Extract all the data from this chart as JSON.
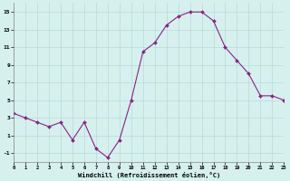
{
  "x": [
    0,
    1,
    2,
    3,
    4,
    5,
    6,
    7,
    8,
    9,
    10,
    11,
    12,
    13,
    14,
    15,
    16,
    17,
    18,
    19,
    20,
    21,
    22,
    23
  ],
  "y": [
    3.5,
    3.0,
    2.5,
    2.0,
    2.5,
    0.5,
    2.5,
    -0.5,
    -1.5,
    0.5,
    5.0,
    10.5,
    11.5,
    13.5,
    14.5,
    15.0,
    15.0,
    14.0,
    11.0,
    9.5,
    8.0,
    5.5,
    5.5,
    5.0
  ],
  "xlim": [
    0,
    23
  ],
  "ylim": [
    -2,
    16
  ],
  "yticks": [
    -1,
    1,
    3,
    5,
    7,
    9,
    11,
    13,
    15
  ],
  "ytick_labels": [
    "-1",
    "1",
    "3",
    "5",
    "7",
    "9",
    "11",
    "13",
    "15"
  ],
  "xtick_labels": [
    "0",
    "1",
    "2",
    "3",
    "4",
    "5",
    "6",
    "7",
    "8",
    "9",
    "10",
    "11",
    "12",
    "13",
    "14",
    "15",
    "16",
    "17",
    "18",
    "19",
    "20",
    "21",
    "22",
    "23"
  ],
  "xlabel": "Windchill (Refroidissement éolien,°C)",
  "line_color": "#882288",
  "marker_color": "#882288",
  "bg_color": "#d6f0ee",
  "grid_color": "#b8dbd8",
  "spine_color": "#888888"
}
